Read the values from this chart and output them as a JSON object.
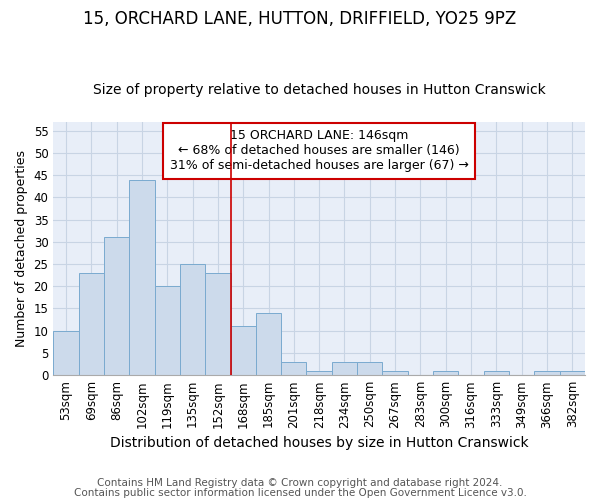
{
  "title": "15, ORCHARD LANE, HUTTON, DRIFFIELD, YO25 9PZ",
  "subtitle": "Size of property relative to detached houses in Hutton Cranswick",
  "xlabel": "Distribution of detached houses by size in Hutton Cranswick",
  "ylabel": "Number of detached properties",
  "categories": [
    "53sqm",
    "69sqm",
    "86sqm",
    "102sqm",
    "119sqm",
    "135sqm",
    "152sqm",
    "168sqm",
    "185sqm",
    "201sqm",
    "218sqm",
    "234sqm",
    "250sqm",
    "267sqm",
    "283sqm",
    "300sqm",
    "316sqm",
    "333sqm",
    "349sqm",
    "366sqm",
    "382sqm"
  ],
  "values": [
    10,
    23,
    31,
    44,
    20,
    25,
    23,
    11,
    14,
    3,
    1,
    3,
    3,
    1,
    0,
    1,
    0,
    1,
    0,
    1,
    1
  ],
  "bar_color": "#ccdaeb",
  "bar_edge_color": "#7aaacf",
  "grid_color": "#c8d4e4",
  "background_color": "#e8eef8",
  "annotation_box_text": "15 ORCHARD LANE: 146sqm\n← 68% of detached houses are smaller (146)\n31% of semi-detached houses are larger (67) →",
  "annotation_box_color": "#ffffff",
  "annotation_box_edge_color": "#cc0000",
  "vline_x": 6.5,
  "vline_color": "#cc0000",
  "ylim": [
    0,
    57
  ],
  "yticks": [
    0,
    5,
    10,
    15,
    20,
    25,
    30,
    35,
    40,
    45,
    50,
    55
  ],
  "footer_line1": "Contains HM Land Registry data © Crown copyright and database right 2024.",
  "footer_line2": "Contains public sector information licensed under the Open Government Licence v3.0.",
  "title_fontsize": 12,
  "subtitle_fontsize": 10,
  "xlabel_fontsize": 10,
  "ylabel_fontsize": 9,
  "tick_fontsize": 8.5,
  "footer_fontsize": 7.5,
  "annot_fontsize": 9
}
